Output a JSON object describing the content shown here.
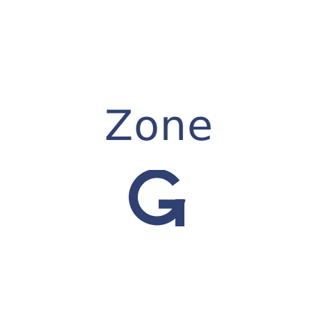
{
  "zone": {
    "word": "Zone",
    "letter": "G"
  },
  "colors": {
    "ink": "#2f4172",
    "background": "#ffffff"
  },
  "icons": {
    "letter_glyph": "letter-g-icon"
  }
}
